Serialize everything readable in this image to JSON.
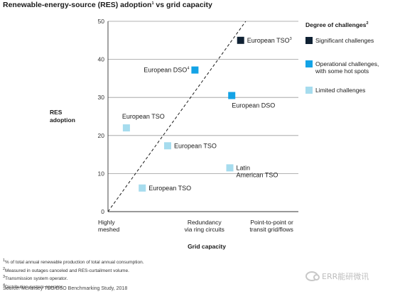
{
  "chart_data": {
    "type": "scatter",
    "title": "Renewable-energy-source (RES) adoption",
    "title_sup": "1",
    "title_rest": " vs grid capacity",
    "ylabel_lines": [
      "RES",
      "adoption"
    ],
    "xlabel": "Grid capacity",
    "ylim": [
      0,
      50
    ],
    "yticks": [
      0,
      10,
      20,
      30,
      40,
      50
    ],
    "xlim": [
      0,
      3
    ],
    "xcategories": [
      {
        "x": 0.08,
        "lines": [
          "Highly",
          "meshed"
        ],
        "anchor": "start"
      },
      {
        "x": 1.52,
        "lines": [
          "Redundancy",
          "via ring circuits"
        ],
        "anchor": "middle"
      },
      {
        "x": 2.92,
        "lines": [
          "Point-to-point or",
          "transit grid/flows"
        ],
        "anchor": "end"
      }
    ],
    "grid": true,
    "reference_line": {
      "from": [
        0,
        0
      ],
      "to": [
        2.17,
        50
      ],
      "style": "dashed"
    },
    "legend_position": "right",
    "legend_title": "Degree of challenges",
    "legend_title_sup": "2",
    "legend": [
      {
        "key": "significant",
        "lines": [
          "Significant challenges"
        ],
        "color": "#0f2133"
      },
      {
        "key": "operational",
        "lines": [
          "Operational challenges,",
          "with some hot spots"
        ],
        "color": "#13a3e6"
      },
      {
        "key": "limited",
        "lines": [
          "Limited challenges"
        ],
        "color": "#a6dcee"
      }
    ],
    "points": [
      {
        "x": 2.09,
        "y": 45,
        "category": "significant",
        "label": "European TSO",
        "label_sup": "3",
        "label_pos": "right"
      },
      {
        "x": 1.37,
        "y": 37.2,
        "category": "operational",
        "label": "European DSO",
        "label_sup": "4",
        "label_pos": "left"
      },
      {
        "x": 1.95,
        "y": 30.5,
        "category": "operational",
        "label": "European DSO",
        "label_sup": "",
        "label_pos": "below"
      },
      {
        "x": 0.29,
        "y": 22,
        "category": "limited",
        "label": "European TSO",
        "label_sup": "",
        "label_pos": "above"
      },
      {
        "x": 0.94,
        "y": 17.3,
        "category": "limited",
        "label": "European TSO",
        "label_sup": "",
        "label_pos": "right"
      },
      {
        "x": 1.92,
        "y": 11.5,
        "category": "limited",
        "label_lines": [
          "Latin",
          "American TSO"
        ],
        "label_pos": "right"
      },
      {
        "x": 0.54,
        "y": 6.2,
        "category": "limited",
        "label": "European TSO",
        "label_sup": "",
        "label_pos": "right"
      }
    ]
  },
  "footnotes": [
    {
      "sup": "1",
      "text": "% of total annual renewable production of total annual consumption."
    },
    {
      "sup": "2",
      "text": "Measured in outages canceled and RES-curtailment volume."
    },
    {
      "sup": "3",
      "text": "Transmission system operator."
    },
    {
      "sup": "4",
      "text": "Distribution system operator."
    }
  ],
  "source": "Source: McKinsey TSO/DSO Benchmarking Study, 2018",
  "watermark": "ERR能研微讯"
}
